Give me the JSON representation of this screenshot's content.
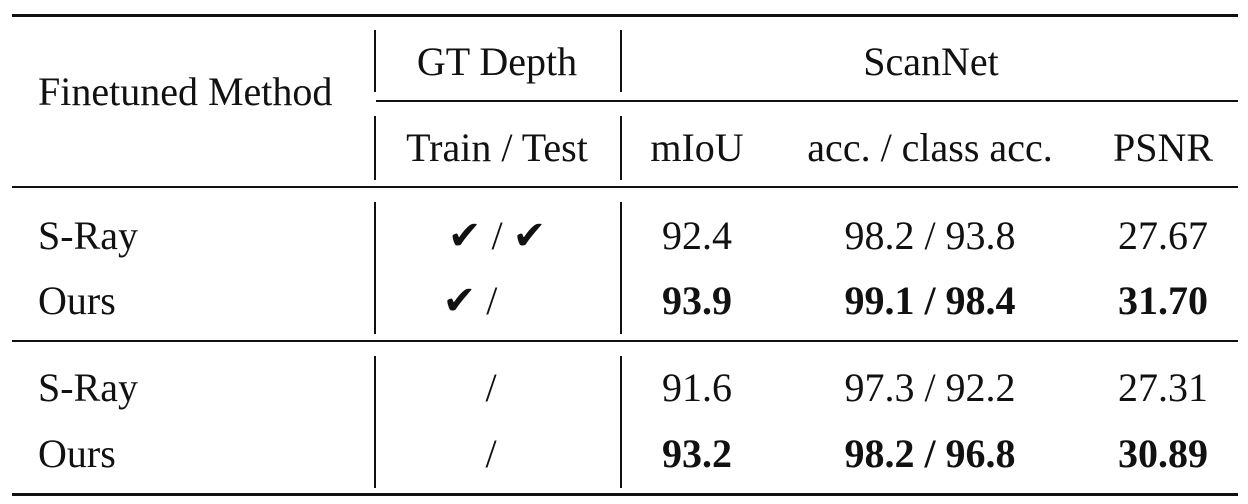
{
  "table": {
    "header": {
      "method": "Finetuned Method",
      "gt_depth": "GT Depth",
      "train_test": "Train / Test",
      "scannet": "ScanNet",
      "miou": "mIoU",
      "acc": "acc. / class acc.",
      "psnr": "PSNR"
    },
    "rows": [
      {
        "method": "S-Ray",
        "train_mark": "✔",
        "sep": "/",
        "test_mark": "✔",
        "miou": "92.4",
        "acc": "98.2 / 93.8",
        "psnr": "27.67",
        "bold": false
      },
      {
        "method": "Ours",
        "train_mark": "✔",
        "sep": "/",
        "test_mark": "",
        "miou": "93.9",
        "acc": "99.1 / 98.4",
        "psnr": "31.70",
        "bold": true
      },
      {
        "method": "S-Ray",
        "train_mark": "",
        "sep": "/",
        "test_mark": "",
        "miou": "91.6",
        "acc": "97.3 / 92.2",
        "psnr": "27.31",
        "bold": false
      },
      {
        "method": "Ours",
        "train_mark": "",
        "sep": "/",
        "test_mark": "",
        "miou": "93.2",
        "acc": "98.2 / 96.8",
        "psnr": "30.89",
        "bold": true
      }
    ]
  }
}
